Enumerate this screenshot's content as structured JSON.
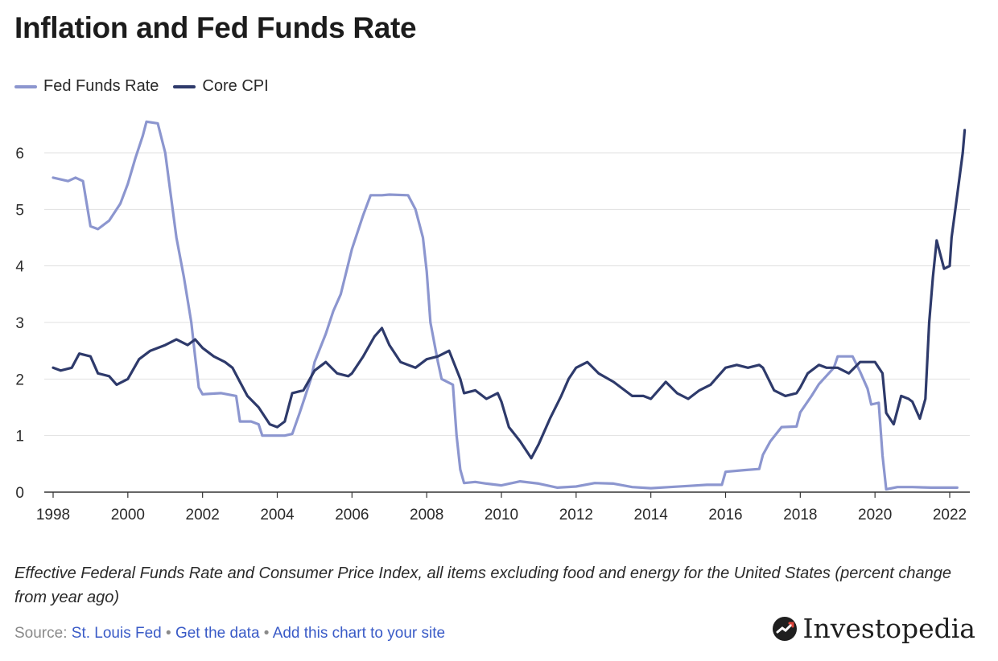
{
  "title": "Inflation and Fed Funds Rate",
  "legend": [
    {
      "name": "Fed Funds Rate",
      "color": "#8c96cf"
    },
    {
      "name": "Core CPI",
      "color": "#2e3a6b"
    }
  ],
  "caption": "Effective Federal Funds Rate and Consumer Price Index, all items excluding food and energy for the United States (percent change from year ago)",
  "source": {
    "label": "Source:",
    "link1": "St. Louis Fed",
    "link2": "Get the data",
    "link3": "Add this chart to your site",
    "separator": "•"
  },
  "logo_text": "Investopedia",
  "chart_data": {
    "type": "line",
    "title": "Inflation and Fed Funds Rate",
    "xlabel": "",
    "ylabel": "",
    "xlim": [
      1998,
      2022.3
    ],
    "ylim": [
      0,
      6.6
    ],
    "x_ticks": [
      1998,
      2000,
      2002,
      2004,
      2006,
      2008,
      2010,
      2012,
      2014,
      2016,
      2018,
      2020,
      2022
    ],
    "y_ticks": [
      0,
      1,
      2,
      3,
      4,
      5,
      6
    ],
    "grid": true,
    "legend_position": "top-left",
    "series": [
      {
        "name": "Fed Funds Rate",
        "color": "#8c96cf",
        "points": [
          [
            1998.0,
            5.56
          ],
          [
            1998.4,
            5.5
          ],
          [
            1998.6,
            5.56
          ],
          [
            1998.8,
            5.5
          ],
          [
            1999.0,
            4.7
          ],
          [
            1999.2,
            4.65
          ],
          [
            1999.5,
            4.8
          ],
          [
            1999.8,
            5.1
          ],
          [
            2000.0,
            5.45
          ],
          [
            2000.2,
            5.9
          ],
          [
            2000.4,
            6.3
          ],
          [
            2000.5,
            6.55
          ],
          [
            2000.8,
            6.52
          ],
          [
            2001.0,
            6.0
          ],
          [
            2001.1,
            5.5
          ],
          [
            2001.3,
            4.5
          ],
          [
            2001.5,
            3.8
          ],
          [
            2001.7,
            3.0
          ],
          [
            2001.8,
            2.4
          ],
          [
            2001.9,
            1.85
          ],
          [
            2002.0,
            1.73
          ],
          [
            2002.5,
            1.75
          ],
          [
            2002.9,
            1.7
          ],
          [
            2003.0,
            1.25
          ],
          [
            2003.3,
            1.25
          ],
          [
            2003.5,
            1.2
          ],
          [
            2003.6,
            1.0
          ],
          [
            2004.0,
            1.0
          ],
          [
            2004.2,
            1.0
          ],
          [
            2004.4,
            1.03
          ],
          [
            2004.6,
            1.4
          ],
          [
            2004.9,
            2.0
          ],
          [
            2005.0,
            2.3
          ],
          [
            2005.3,
            2.8
          ],
          [
            2005.5,
            3.2
          ],
          [
            2005.7,
            3.5
          ],
          [
            2006.0,
            4.3
          ],
          [
            2006.3,
            4.9
          ],
          [
            2006.5,
            5.25
          ],
          [
            2006.8,
            5.25
          ],
          [
            2007.0,
            5.26
          ],
          [
            2007.5,
            5.25
          ],
          [
            2007.7,
            5.0
          ],
          [
            2007.9,
            4.5
          ],
          [
            2008.0,
            3.9
          ],
          [
            2008.1,
            3.0
          ],
          [
            2008.3,
            2.3
          ],
          [
            2008.4,
            2.0
          ],
          [
            2008.7,
            1.9
          ],
          [
            2008.8,
            1.0
          ],
          [
            2008.9,
            0.4
          ],
          [
            2009.0,
            0.16
          ],
          [
            2009.3,
            0.18
          ],
          [
            2009.6,
            0.15
          ],
          [
            2010.0,
            0.12
          ],
          [
            2010.5,
            0.19
          ],
          [
            2011.0,
            0.15
          ],
          [
            2011.5,
            0.08
          ],
          [
            2012.0,
            0.1
          ],
          [
            2012.5,
            0.16
          ],
          [
            2013.0,
            0.15
          ],
          [
            2013.5,
            0.09
          ],
          [
            2014.0,
            0.07
          ],
          [
            2014.5,
            0.09
          ],
          [
            2015.0,
            0.11
          ],
          [
            2015.5,
            0.13
          ],
          [
            2015.9,
            0.13
          ],
          [
            2016.0,
            0.36
          ],
          [
            2016.5,
            0.39
          ],
          [
            2016.9,
            0.41
          ],
          [
            2017.0,
            0.66
          ],
          [
            2017.2,
            0.9
          ],
          [
            2017.5,
            1.15
          ],
          [
            2017.9,
            1.16
          ],
          [
            2018.0,
            1.41
          ],
          [
            2018.3,
            1.7
          ],
          [
            2018.5,
            1.91
          ],
          [
            2018.9,
            2.2
          ],
          [
            2019.0,
            2.4
          ],
          [
            2019.4,
            2.4
          ],
          [
            2019.6,
            2.13
          ],
          [
            2019.8,
            1.83
          ],
          [
            2019.9,
            1.55
          ],
          [
            2020.1,
            1.58
          ],
          [
            2020.2,
            0.65
          ],
          [
            2020.3,
            0.05
          ],
          [
            2020.6,
            0.09
          ],
          [
            2021.0,
            0.09
          ],
          [
            2021.5,
            0.08
          ],
          [
            2022.0,
            0.08
          ],
          [
            2022.2,
            0.08
          ]
        ]
      },
      {
        "name": "Core CPI",
        "color": "#2e3a6b",
        "points": [
          [
            1998.0,
            2.2
          ],
          [
            1998.2,
            2.15
          ],
          [
            1998.5,
            2.2
          ],
          [
            1998.7,
            2.45
          ],
          [
            1999.0,
            2.4
          ],
          [
            1999.2,
            2.1
          ],
          [
            1999.5,
            2.05
          ],
          [
            1999.7,
            1.9
          ],
          [
            2000.0,
            2.0
          ],
          [
            2000.3,
            2.35
          ],
          [
            2000.6,
            2.5
          ],
          [
            2001.0,
            2.6
          ],
          [
            2001.3,
            2.7
          ],
          [
            2001.6,
            2.6
          ],
          [
            2001.8,
            2.7
          ],
          [
            2002.0,
            2.55
          ],
          [
            2002.3,
            2.4
          ],
          [
            2002.6,
            2.3
          ],
          [
            2002.8,
            2.2
          ],
          [
            2003.0,
            1.95
          ],
          [
            2003.2,
            1.7
          ],
          [
            2003.5,
            1.5
          ],
          [
            2003.8,
            1.2
          ],
          [
            2004.0,
            1.15
          ],
          [
            2004.2,
            1.25
          ],
          [
            2004.4,
            1.75
          ],
          [
            2004.7,
            1.8
          ],
          [
            2005.0,
            2.15
          ],
          [
            2005.3,
            2.3
          ],
          [
            2005.6,
            2.1
          ],
          [
            2005.9,
            2.05
          ],
          [
            2006.0,
            2.1
          ],
          [
            2006.3,
            2.4
          ],
          [
            2006.6,
            2.75
          ],
          [
            2006.8,
            2.9
          ],
          [
            2007.0,
            2.6
          ],
          [
            2007.3,
            2.3
          ],
          [
            2007.7,
            2.2
          ],
          [
            2008.0,
            2.35
          ],
          [
            2008.3,
            2.4
          ],
          [
            2008.6,
            2.5
          ],
          [
            2008.9,
            2.0
          ],
          [
            2009.0,
            1.75
          ],
          [
            2009.3,
            1.8
          ],
          [
            2009.6,
            1.65
          ],
          [
            2009.9,
            1.75
          ],
          [
            2010.0,
            1.6
          ],
          [
            2010.2,
            1.15
          ],
          [
            2010.5,
            0.9
          ],
          [
            2010.8,
            0.6
          ],
          [
            2011.0,
            0.85
          ],
          [
            2011.3,
            1.3
          ],
          [
            2011.6,
            1.7
          ],
          [
            2011.8,
            2.0
          ],
          [
            2012.0,
            2.2
          ],
          [
            2012.3,
            2.3
          ],
          [
            2012.6,
            2.1
          ],
          [
            2013.0,
            1.95
          ],
          [
            2013.5,
            1.7
          ],
          [
            2013.8,
            1.7
          ],
          [
            2014.0,
            1.65
          ],
          [
            2014.4,
            1.95
          ],
          [
            2014.7,
            1.75
          ],
          [
            2015.0,
            1.65
          ],
          [
            2015.3,
            1.8
          ],
          [
            2015.6,
            1.9
          ],
          [
            2016.0,
            2.2
          ],
          [
            2016.3,
            2.25
          ],
          [
            2016.6,
            2.2
          ],
          [
            2016.9,
            2.25
          ],
          [
            2017.0,
            2.2
          ],
          [
            2017.3,
            1.8
          ],
          [
            2017.6,
            1.7
          ],
          [
            2017.9,
            1.75
          ],
          [
            2018.0,
            1.85
          ],
          [
            2018.2,
            2.1
          ],
          [
            2018.5,
            2.25
          ],
          [
            2018.7,
            2.2
          ],
          [
            2018.9,
            2.2
          ],
          [
            2019.0,
            2.2
          ],
          [
            2019.3,
            2.1
          ],
          [
            2019.6,
            2.3
          ],
          [
            2019.9,
            2.3
          ],
          [
            2020.0,
            2.3
          ],
          [
            2020.2,
            2.1
          ],
          [
            2020.3,
            1.4
          ],
          [
            2020.5,
            1.2
          ],
          [
            2020.7,
            1.7
          ],
          [
            2020.9,
            1.65
          ],
          [
            2021.0,
            1.6
          ],
          [
            2021.2,
            1.3
          ],
          [
            2021.35,
            1.65
          ],
          [
            2021.45,
            3.0
          ],
          [
            2021.55,
            3.8
          ],
          [
            2021.65,
            4.45
          ],
          [
            2021.85,
            3.95
          ],
          [
            2022.0,
            4.0
          ],
          [
            2022.05,
            4.5
          ],
          [
            2022.15,
            5.0
          ],
          [
            2022.25,
            5.5
          ],
          [
            2022.35,
            6.0
          ],
          [
            2022.4,
            6.4
          ]
        ]
      }
    ]
  }
}
